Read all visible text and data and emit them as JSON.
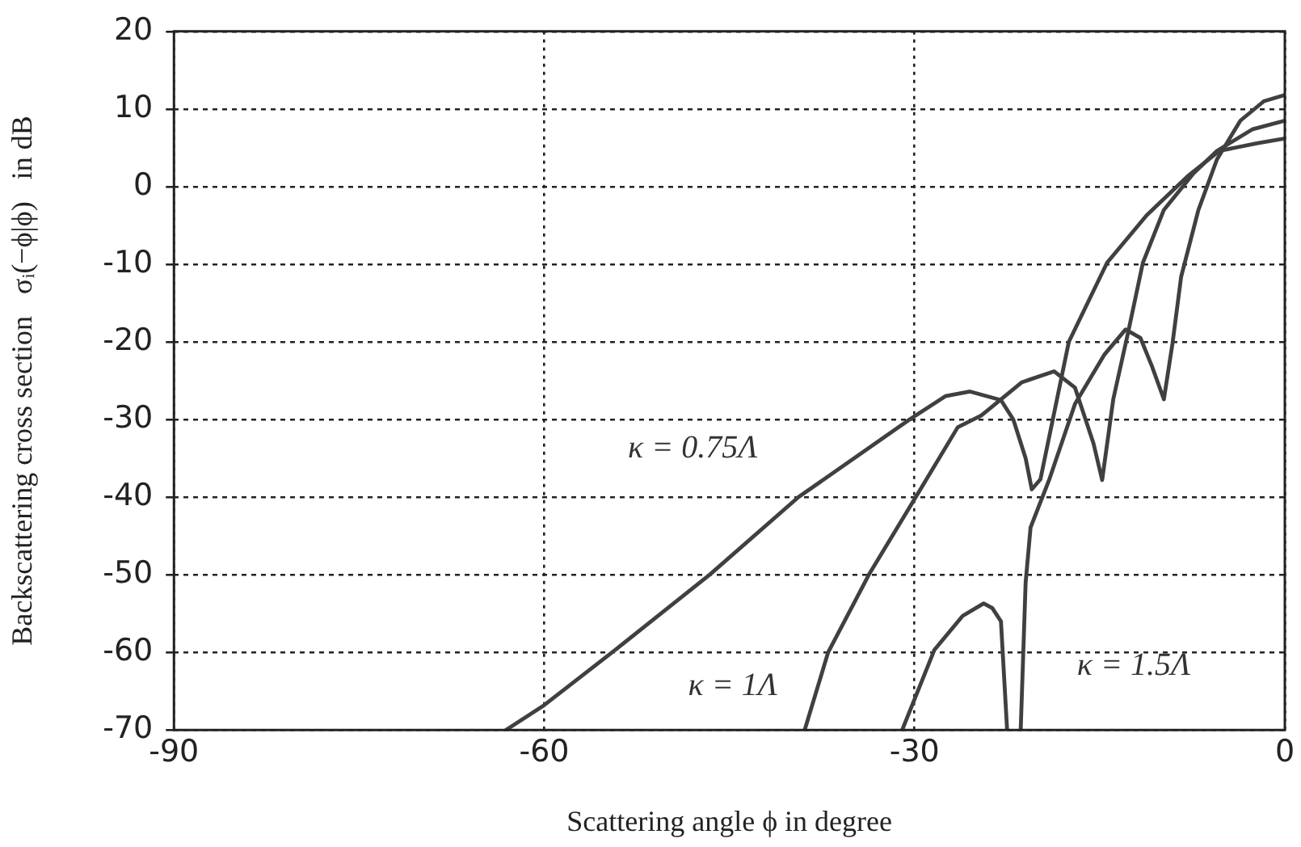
{
  "chart_data": {
    "type": "line",
    "xlabel": "Scattering angle ϕ in degree",
    "ylabel": "Backscattering cross section   σᵢ(−ϕ|ϕ)   in dB",
    "xlim": [
      -90,
      0
    ],
    "xticks": [
      -90,
      -60,
      -30,
      0
    ],
    "ylim": [
      -70,
      20
    ],
    "yticks": [
      20,
      10,
      0,
      -10,
      -20,
      -30,
      -40,
      -50,
      -60,
      -70
    ],
    "grid": true,
    "legend": false,
    "marker": "none",
    "line_style": "solid",
    "series": [
      {
        "color": "#404040",
        "x": [
          -63.1,
          -60,
          -54.5,
          -46.6,
          -39.4,
          -30.4,
          -27.5,
          -25.5,
          -23,
          -22,
          -21,
          -20.5,
          -19.8,
          -17.5,
          -14.4,
          -11.2,
          -7.9,
          -5.3,
          -2.2,
          0
        ],
        "values": [
          -70,
          -66.8,
          -60,
          -50,
          -40,
          -30,
          -27,
          -26.4,
          -27.5,
          -30,
          -35,
          -39,
          -37.7,
          -20,
          -9.8,
          -3.7,
          1.3,
          4.6,
          5.6,
          6.2
        ]
      },
      {
        "color": "#404040",
        "x": [
          -38.9,
          -37,
          -33.7,
          -29.9,
          -26.5,
          -24.6,
          -21.3,
          -18.7,
          -17,
          -15.5,
          -14.8,
          -13.9,
          -12.7,
          -11.5,
          -9.8,
          -7.4,
          -5.5,
          -2.6,
          0
        ],
        "values": [
          -70,
          -60,
          -50,
          -40,
          -31,
          -29.5,
          -25.2,
          -23.8,
          -25.9,
          -33.1,
          -37.8,
          -27.4,
          -18.8,
          -9.8,
          -3,
          1.7,
          4.6,
          7.4,
          8.5
        ]
      },
      {
        "color": "#404040",
        "x": [
          -31,
          -28.4,
          -26.1,
          -24.4,
          -23.7,
          -23,
          -22.5,
          -22,
          -21.4,
          -21,
          -20.6,
          -19.1,
          -17,
          -14.6,
          -12.9,
          -11.7,
          -10.8,
          -9.8,
          -9.1,
          -8.4,
          -7,
          -5.5,
          -3.6,
          -1.7,
          0
        ],
        "values": [
          -70,
          -59.7,
          -55.3,
          -53.7,
          -54.3,
          -56,
          -70,
          null,
          -70,
          -51,
          -43.9,
          -37.8,
          -28,
          -21.6,
          -18.4,
          -19.5,
          -23,
          -27.4,
          -20.2,
          -11.6,
          -3,
          3.5,
          8.5,
          11,
          11.8
        ]
      }
    ],
    "annotations": [
      "κ = 0.75Λ",
      "κ = 1Λ",
      "κ = 1.5Λ"
    ]
  }
}
